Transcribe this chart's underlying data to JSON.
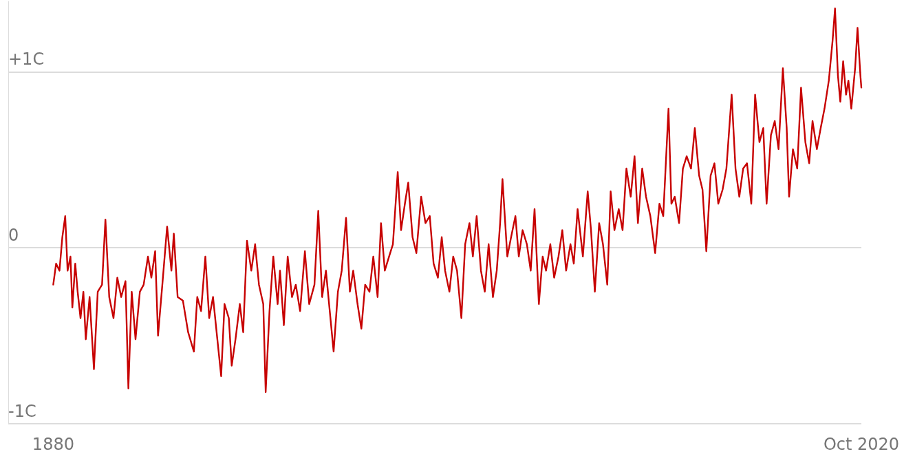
{
  "chart_data": {
    "type": "line",
    "grid": "y",
    "marker": "none",
    "line_style": "solid",
    "xlim": [
      "1872-03",
      "2020-10"
    ],
    "xticks": [
      {
        "value": "1880-01",
        "label": "1880"
      },
      {
        "value": "2020-10",
        "label": "Oct 2020"
      }
    ],
    "ylim": [
      -1,
      1.4
    ],
    "yticks": [
      {
        "value": -1,
        "label": "-1C"
      },
      {
        "value": 0,
        "label": "0"
      },
      {
        "value": 1,
        "label": "+1C"
      }
    ],
    "x": [
      "1880-01",
      "1880-07",
      "1881-02",
      "1881-08",
      "1882-02",
      "1882-07",
      "1883-01",
      "1883-05",
      "1883-11",
      "1884-04",
      "1884-10",
      "1885-04",
      "1885-09",
      "1886-05",
      "1887-02",
      "1887-10",
      "1888-07",
      "1889-02",
      "1889-10",
      "1890-07",
      "1891-03",
      "1891-11",
      "1892-08",
      "1893-02",
      "1893-09",
      "1894-05",
      "1895-02",
      "1895-10",
      "1896-07",
      "1897-02",
      "1897-10",
      "1898-04",
      "1899-01",
      "1899-11",
      "1900-08",
      "1901-01",
      "1901-09",
      "1902-08",
      "1903-07",
      "1904-07",
      "1905-02",
      "1905-10",
      "1906-07",
      "1907-03",
      "1907-11",
      "1908-08",
      "1909-04",
      "1909-11",
      "1910-08",
      "1911-02",
      "1911-10",
      "1912-07",
      "1913-02",
      "1913-10",
      "1914-07",
      "1915-03",
      "1915-11",
      "1916-08",
      "1917-01",
      "1917-09",
      "1918-05",
      "1919-02",
      "1919-07",
      "1920-03",
      "1920-11",
      "1921-08",
      "1922-04",
      "1923-01",
      "1923-11",
      "1924-08",
      "1925-07",
      "1926-03",
      "1926-11",
      "1927-07",
      "1928-03",
      "1928-11",
      "1929-08",
      "1930-04",
      "1931-01",
      "1931-09",
      "1932-04",
      "1933-01",
      "1933-09",
      "1934-05",
      "1935-02",
      "1935-10",
      "1936-07",
      "1937-02",
      "1937-10",
      "1938-07",
      "1939-03",
      "1940-01",
      "1940-08",
      "1941-04",
      "1941-11",
      "1942-08",
      "1943-04",
      "1944-02",
      "1944-11",
      "1945-08",
      "1946-04",
      "1947-01",
      "1947-09",
      "1948-04",
      "1949-01",
      "1949-09",
      "1950-05",
      "1951-02",
      "1951-10",
      "1952-07",
      "1953-02",
      "1953-10",
      "1954-07",
      "1955-03",
      "1955-11",
      "1956-08",
      "1957-04",
      "1957-11",
      "1958-04",
      "1959-02",
      "1959-10",
      "1960-07",
      "1961-02",
      "1961-10",
      "1962-07",
      "1963-03",
      "1963-11",
      "1964-08",
      "1965-04",
      "1965-11",
      "1966-08",
      "1967-04",
      "1968-01",
      "1968-09",
      "1969-05",
      "1970-02",
      "1970-09",
      "1971-05",
      "1972-04",
      "1973-02",
      "1973-09",
      "1974-05",
      "1975-02",
      "1975-10",
      "1976-07",
      "1977-02",
      "1977-10",
      "1978-07",
      "1979-03",
      "1979-11",
      "1980-08",
      "1981-04",
      "1981-11",
      "1982-08",
      "1983-04",
      "1984-01",
      "1984-11",
      "1985-08",
      "1986-04",
      "1987-03",
      "1987-09",
      "1988-04",
      "1989-01",
      "1989-09",
      "1990-05",
      "1991-02",
      "1991-10",
      "1992-07",
      "1993-02",
      "1993-10",
      "1994-07",
      "1995-03",
      "1995-11",
      "1996-08",
      "1997-04",
      "1998-03",
      "1998-11",
      "1999-07",
      "2000-03",
      "2000-11",
      "2001-08",
      "2002-04",
      "2003-01",
      "2003-09",
      "2004-04",
      "2005-01",
      "2005-09",
      "2006-05",
      "2007-02",
      "2007-10",
      "2008-03",
      "2008-11",
      "2009-08",
      "2010-04",
      "2011-01",
      "2011-09",
      "2012-04",
      "2013-01",
      "2013-09",
      "2014-05",
      "2015-02",
      "2015-10",
      "2016-03",
      "2016-09",
      "2017-02",
      "2017-08",
      "2018-02",
      "2018-07",
      "2019-01",
      "2019-09",
      "2020-02",
      "2020-08",
      "2020-10"
    ],
    "series": [
      {
        "color": "#c70000",
        "values": [
          -0.21,
          -0.09,
          -0.13,
          0.06,
          0.18,
          -0.13,
          -0.05,
          -0.34,
          -0.09,
          -0.25,
          -0.4,
          -0.25,
          -0.52,
          -0.28,
          -0.69,
          -0.25,
          -0.21,
          0.16,
          -0.28,
          -0.4,
          -0.17,
          -0.28,
          -0.19,
          -0.8,
          -0.25,
          -0.52,
          -0.25,
          -0.21,
          -0.05,
          -0.17,
          -0.02,
          -0.5,
          -0.21,
          0.12,
          -0.13,
          0.08,
          -0.28,
          -0.3,
          -0.48,
          -0.59,
          -0.28,
          -0.36,
          -0.05,
          -0.4,
          -0.28,
          -0.52,
          -0.73,
          -0.32,
          -0.4,
          -0.67,
          -0.52,
          -0.32,
          -0.48,
          0.04,
          -0.13,
          0.02,
          -0.21,
          -0.32,
          -0.82,
          -0.36,
          -0.05,
          -0.32,
          -0.13,
          -0.44,
          -0.05,
          -0.28,
          -0.21,
          -0.36,
          -0.02,
          -0.32,
          -0.21,
          0.21,
          -0.28,
          -0.13,
          -0.36,
          -0.59,
          -0.25,
          -0.13,
          0.17,
          -0.25,
          -0.13,
          -0.32,
          -0.46,
          -0.21,
          -0.25,
          -0.05,
          -0.28,
          0.14,
          -0.13,
          -0.05,
          0.02,
          0.43,
          0.1,
          0.25,
          0.37,
          0.06,
          -0.03,
          0.29,
          0.14,
          0.18,
          -0.09,
          -0.17,
          0.06,
          -0.13,
          -0.25,
          -0.05,
          -0.13,
          -0.4,
          0.02,
          0.14,
          -0.05,
          0.18,
          -0.13,
          -0.25,
          0.02,
          -0.28,
          -0.13,
          0.14,
          0.39,
          -0.05,
          0.06,
          0.18,
          -0.05,
          0.1,
          0.02,
          -0.13,
          0.22,
          -0.32,
          -0.05,
          -0.13,
          0.02,
          -0.17,
          -0.05,
          0.1,
          -0.13,
          0.02,
          -0.09,
          0.22,
          -0.05,
          0.32,
          0.1,
          -0.25,
          0.14,
          0.02,
          -0.21,
          0.32,
          0.1,
          0.22,
          0.1,
          0.45,
          0.29,
          0.52,
          0.14,
          0.45,
          0.29,
          0.18,
          -0.03,
          0.25,
          0.18,
          0.79,
          0.25,
          0.29,
          0.14,
          0.45,
          0.52,
          0.45,
          0.68,
          0.41,
          0.33,
          -0.02,
          0.41,
          0.48,
          0.25,
          0.33,
          0.45,
          0.87,
          0.45,
          0.29,
          0.45,
          0.48,
          0.25,
          0.87,
          0.6,
          0.68,
          0.25,
          0.64,
          0.72,
          0.56,
          1.02,
          0.68,
          0.29,
          0.56,
          0.45,
          0.91,
          0.6,
          0.48,
          0.72,
          0.56,
          0.68,
          0.79,
          0.95,
          1.18,
          1.36,
          0.98,
          0.83,
          1.06,
          0.87,
          0.95,
          0.79,
          1.02,
          1.25,
          0.98,
          0.91
        ]
      }
    ]
  }
}
